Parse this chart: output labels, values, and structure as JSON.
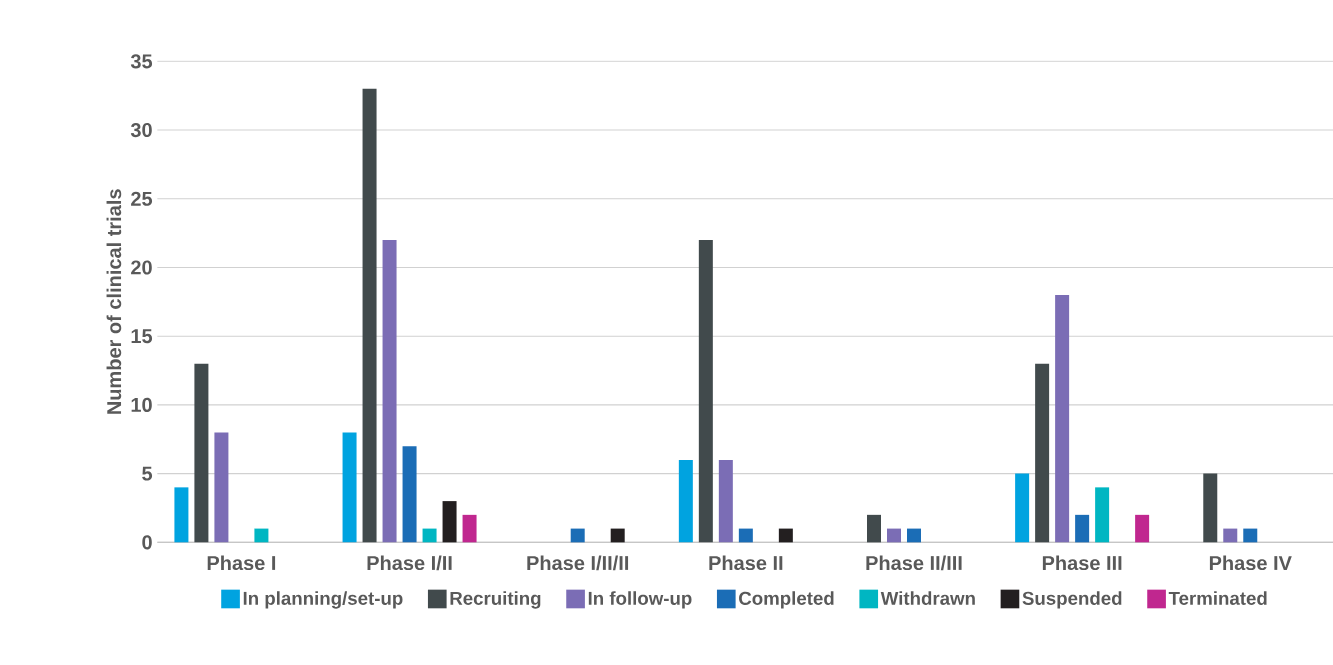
{
  "chart_data": {
    "type": "bar",
    "ylabel": "Number of clinical trials",
    "categories": [
      "Phase I",
      "Phase I/II",
      "Phase I/II/II",
      "Phase II",
      "Phase II/III",
      "Phase III",
      "Phase IV"
    ],
    "series": [
      {
        "name": "In planning/set-up",
        "color": "#00a3e0",
        "values": [
          4,
          8,
          0,
          6,
          0,
          5,
          0
        ]
      },
      {
        "name": "Recruiting",
        "color": "#414a4c",
        "values": [
          13,
          33,
          0,
          22,
          2,
          13,
          5
        ]
      },
      {
        "name": "In follow-up",
        "color": "#7b6db5",
        "values": [
          8,
          22,
          0,
          6,
          1,
          18,
          1
        ]
      },
      {
        "name": "Completed",
        "color": "#1b6db6",
        "values": [
          0,
          7,
          1,
          1,
          1,
          2,
          1
        ]
      },
      {
        "name": "Withdrawn",
        "color": "#00b6c2",
        "values": [
          1,
          1,
          0,
          0,
          0,
          4,
          0
        ]
      },
      {
        "name": "Suspended",
        "color": "#231f20",
        "values": [
          0,
          3,
          1,
          1,
          0,
          0,
          0
        ]
      },
      {
        "name": "Terminated",
        "color": "#c0278f",
        "values": [
          0,
          2,
          0,
          0,
          0,
          2,
          0
        ]
      }
    ],
    "ylim": [
      0,
      35
    ],
    "yticks": [
      0,
      5,
      10,
      15,
      20,
      25,
      30,
      35
    ],
    "grid": "y",
    "legend": "bottom"
  }
}
